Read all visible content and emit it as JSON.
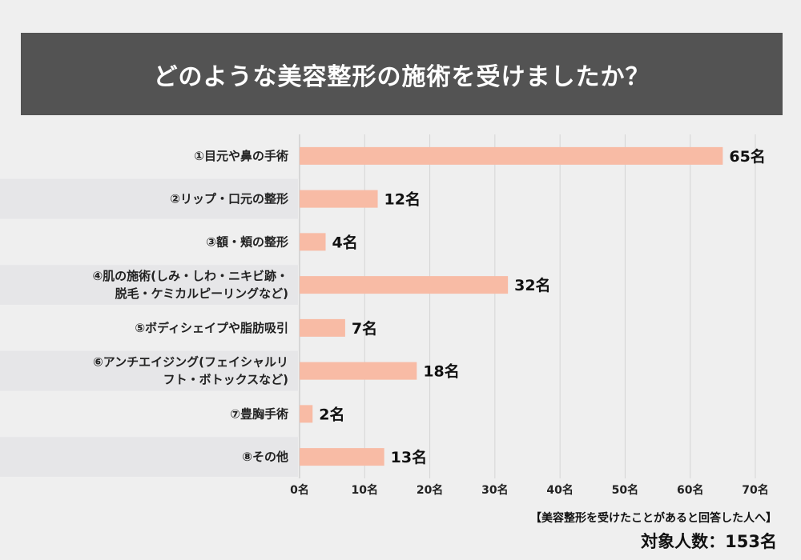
{
  "chart_data": {
    "type": "bar",
    "orientation": "horizontal",
    "title": "どのような美容整形の施術を受けましたか？",
    "categories": [
      [
        "①目元や鼻の手術"
      ],
      [
        "②リップ・口元の整形"
      ],
      [
        "③額・頬の整形"
      ],
      [
        "④肌の施術(しみ・しわ・ニキビ跡・",
        "脱毛・ケミカルピーリングなど)"
      ],
      [
        "⑤ボディシェイプや脂肪吸引"
      ],
      [
        "⑥アンチエイジング(フェイシャルリ",
        "フト・ボトックスなど)"
      ],
      [
        "⑦豊胸手術"
      ],
      [
        "⑧その他"
      ]
    ],
    "values": [
      65,
      12,
      4,
      32,
      7,
      18,
      2,
      13
    ],
    "value_labels": [
      "65名",
      "12名",
      "4名",
      "32名",
      "7名",
      "18名",
      "2名",
      "13名"
    ],
    "xlim": [
      0,
      70
    ],
    "xticks": [
      0,
      10,
      20,
      30,
      40,
      50,
      60,
      70
    ],
    "xtick_labels": [
      "0名",
      "10名",
      "20名",
      "30名",
      "40名",
      "50名",
      "60名",
      "70名"
    ],
    "unit": "名",
    "grid": true,
    "bar_color": "#f8bba5",
    "label_shading_color": "#e6e6e8"
  },
  "footnote": {
    "subtitle": "【美容整形を受けたことがあると回答した人へ】",
    "total": "対象人数：153名"
  }
}
